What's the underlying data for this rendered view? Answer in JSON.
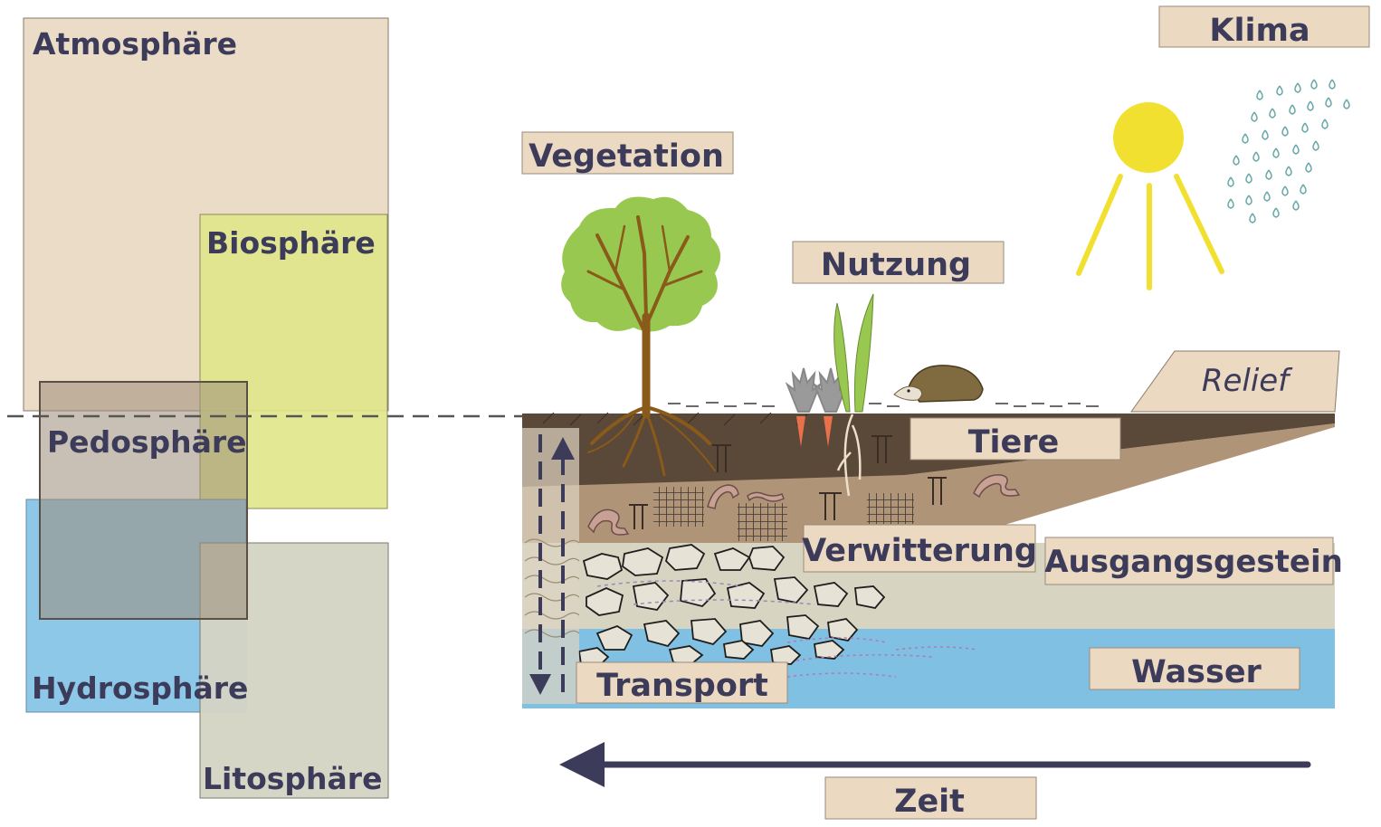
{
  "spheres": {
    "atmosphere": "Atmosphäre",
    "biosphere": "Biosphäre",
    "pedosphere": "Pedosphäre",
    "hydrosphere": "Hydrosphäre",
    "lithosphere": "Litosphäre"
  },
  "factors": {
    "climate": "Klima",
    "vegetation": "Vegetation",
    "usage": "Nutzung",
    "relief": "Relief",
    "animals": "Tiere",
    "weathering": "Verwitterung",
    "parent_rock": "Ausgangsgestein",
    "water": "Wasser",
    "transport": "Transport",
    "time": "Zeit"
  },
  "colors": {
    "atmosphere": "#ebdcc8",
    "biosphere": "#e0e68a",
    "pedosphere": "#b8a890",
    "hydrosphere": "#8ec8e8",
    "lithosphere": "#d4d4c4",
    "label_box": "#ebd9c2",
    "text": "#3c3c5a",
    "topsoil": "#5a4838",
    "subsoil": "#b09478",
    "rock": "#d8d4c2",
    "water": "#80c0e2",
    "sun": "#f2e030",
    "tree": "#98c850",
    "arrow": "#3c3c5a"
  }
}
